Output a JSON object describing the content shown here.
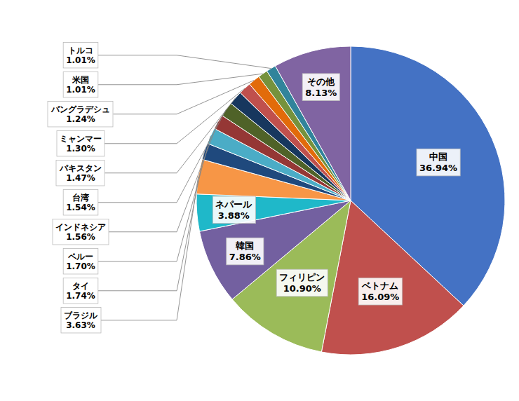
{
  "chart_data": {
    "type": "pie",
    "categories": [
      "中国",
      "ベトナム",
      "フィリピン",
      "韓国",
      "ネパール",
      "ブラジル",
      "タイ",
      "ペルー",
      "インドネシア",
      "台湾",
      "パキスタン",
      "ミャンマー",
      "バングラデシュ",
      "米国",
      "トルコ",
      "その他"
    ],
    "values": [
      36.94,
      16.09,
      10.9,
      7.86,
      3.88,
      3.63,
      1.74,
      1.7,
      1.56,
      1.54,
      1.47,
      1.3,
      1.24,
      1.01,
      1.01,
      8.13
    ],
    "value_labels": [
      "36.94%",
      "16.09%",
      "10.90%",
      "7.86%",
      "3.88%",
      "3.63%",
      "1.74%",
      "1.70%",
      "1.56%",
      "1.54%",
      "1.47%",
      "1.30%",
      "1.24%",
      "1.01%",
      "1.01%",
      "8.13%"
    ],
    "colors": [
      "#4472C4",
      "#C0504D",
      "#9BBB59",
      "#7360A0",
      "#1FB8C9",
      "#F79646",
      "#1F497D",
      "#4BACC6",
      "#953735",
      "#4F6228",
      "#17375E",
      "#C0504D",
      "#E26B0A",
      "#76923C",
      "#31849B",
      "#8064A2"
    ],
    "data_labels": true
  }
}
